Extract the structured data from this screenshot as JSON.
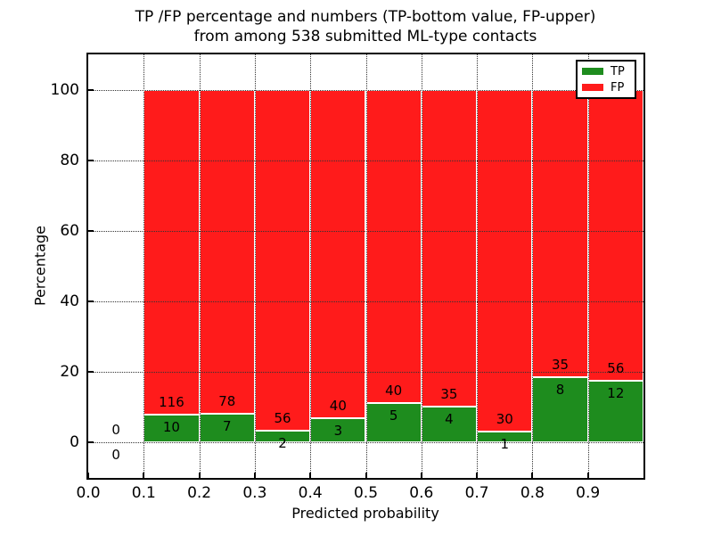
{
  "title": {
    "line1": "TP /FP percentage and numbers (TP-bottom value, FP-upper)",
    "line2": "from among 538 submitted ML-type contacts"
  },
  "axes": {
    "xlabel": "Predicted probability",
    "ylabel": "Percentage"
  },
  "legend": {
    "position": "upper right",
    "entries": [
      {
        "label": "TP",
        "color": "#1e8c1e"
      },
      {
        "label": "FP",
        "color": "#ff1b1b"
      }
    ]
  },
  "chart_data": {
    "type": "bar",
    "stacked": true,
    "percent_normalized": true,
    "title": "TP /FP percentage and numbers (TP-bottom value, FP-upper) from among 538 submitted ML-type contacts",
    "xlabel": "Predicted probability",
    "ylabel": "Percentage",
    "xlim": [
      0.0,
      1.0
    ],
    "ylim": [
      -10,
      110
    ],
    "xticks": [
      "0.0",
      "0.1",
      "0.2",
      "0.3",
      "0.4",
      "0.5",
      "0.6",
      "0.7",
      "0.8",
      "0.9"
    ],
    "yticks": [
      0,
      20,
      40,
      60,
      80,
      100
    ],
    "grid": {
      "visible": true,
      "style": "dotted",
      "color": "#333333"
    },
    "bin_width": 0.1,
    "total_contacts": 538,
    "bins": [
      {
        "x_start": 0.0,
        "tp": 0,
        "fp": 0
      },
      {
        "x_start": 0.1,
        "tp": 10,
        "fp": 116
      },
      {
        "x_start": 0.2,
        "tp": 7,
        "fp": 78
      },
      {
        "x_start": 0.3,
        "tp": 2,
        "fp": 56
      },
      {
        "x_start": 0.4,
        "tp": 3,
        "fp": 40
      },
      {
        "x_start": 0.5,
        "tp": 5,
        "fp": 40
      },
      {
        "x_start": 0.6,
        "tp": 4,
        "fp": 35
      },
      {
        "x_start": 0.7,
        "tp": 1,
        "fp": 30
      },
      {
        "x_start": 0.8,
        "tp": 8,
        "fp": 35
      },
      {
        "x_start": 0.9,
        "tp": 12,
        "fp": 56
      }
    ],
    "series": [
      {
        "name": "TP",
        "color": "#1e8c1e",
        "values": [
          0,
          10,
          7,
          2,
          3,
          5,
          4,
          1,
          8,
          12
        ]
      },
      {
        "name": "FP",
        "color": "#ff1b1b",
        "values": [
          0,
          116,
          78,
          56,
          40,
          40,
          35,
          30,
          35,
          56
        ]
      }
    ]
  },
  "colors": {
    "tp": "#1e8c1e",
    "fp": "#ff1b1b",
    "background": "#ffffff",
    "frame": "#000000",
    "text": "#000000"
  }
}
